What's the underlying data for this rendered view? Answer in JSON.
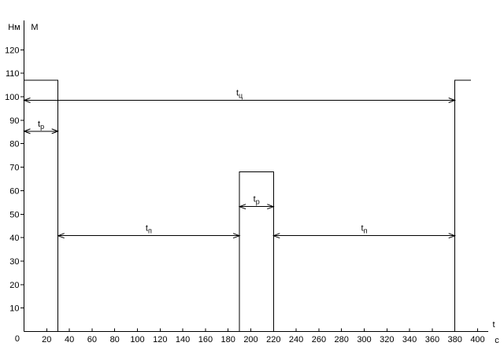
{
  "figure": {
    "background": "#ffffff",
    "line_color": "#000000"
  },
  "axes": {
    "y_unit": "Нм",
    "y_name": "М",
    "x_name": "t",
    "x_unit": "с",
    "origin_label": "0"
  },
  "chart_data": {
    "type": "line",
    "subtype": "rectangular-pulse-duty-cycle-diagram",
    "title": "",
    "ylabel": "М",
    "y_unit_label": "Нм",
    "xlabel": "t",
    "x_unit_label": "с",
    "xlim": [
      0,
      410
    ],
    "ylim": [
      0,
      133
    ],
    "x_tick_step": 20,
    "y_tick_step": 10,
    "x_ticks": [
      20,
      40,
      60,
      80,
      100,
      120,
      140,
      160,
      180,
      200,
      220,
      240,
      260,
      280,
      300,
      320,
      340,
      360,
      380,
      400
    ],
    "y_ticks": [
      10,
      20,
      30,
      40,
      50,
      60,
      70,
      80,
      90,
      100,
      110,
      120
    ],
    "grid": false,
    "pulses": [
      {
        "t_start": 0,
        "t_end": 30,
        "magnitude": 107,
        "open_right": false
      },
      {
        "t_start": 190,
        "t_end": 220,
        "magnitude": 68,
        "open_right": false
      },
      {
        "t_start": 380,
        "t_end": 394,
        "magnitude": 107,
        "open_right": true
      }
    ],
    "dimension_annotations": [
      {
        "name": "cycle-time",
        "base": "t",
        "sub": "ц",
        "from": 0,
        "to": 380,
        "level": 98.5
      },
      {
        "name": "work-time-1",
        "base": "t",
        "sub": "р",
        "from": 0,
        "to": 30,
        "level": 85.3
      },
      {
        "name": "work-time-2",
        "base": "t",
        "sub": "р",
        "from": 190,
        "to": 220,
        "level": 53.2
      },
      {
        "name": "pause-time-1",
        "base": "t",
        "sub": "п",
        "from": 30,
        "to": 190,
        "level": 40.8
      },
      {
        "name": "pause-time-2",
        "base": "t",
        "sub": "п",
        "from": 220,
        "to": 380,
        "level": 40.8
      }
    ]
  }
}
